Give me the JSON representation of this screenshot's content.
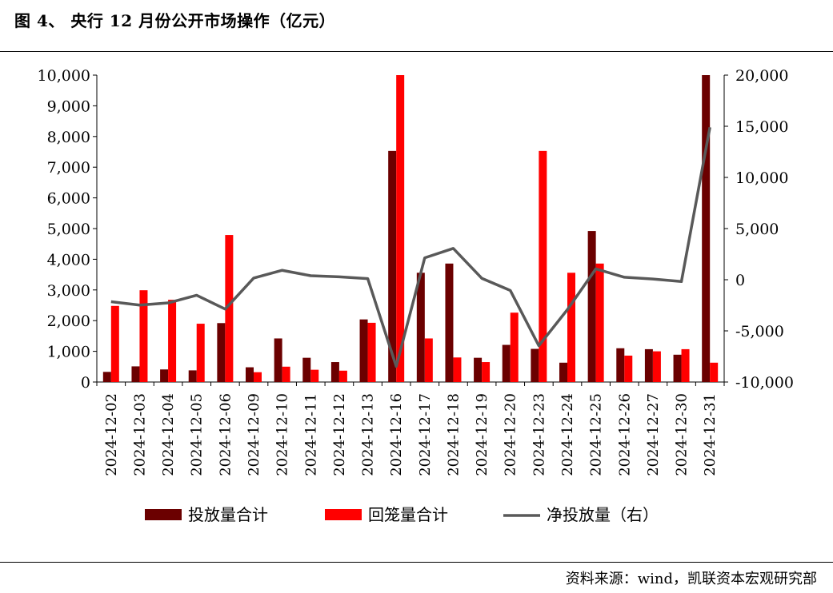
{
  "page": {
    "title": "图 4、 央行 12 月份公开市场操作（亿元）",
    "source": "资料来源：wind，凯联资本宏观研究部"
  },
  "colors": {
    "investment": "#6b0000",
    "redemption": "#ff0000",
    "net": "#595959",
    "axis": "#000000"
  },
  "chart_data": {
    "type": "bar",
    "title": "图 4、 央行 12 月份公开市场操作（亿元）",
    "categories": [
      "2024-12-02",
      "2024-12-03",
      "2024-12-04",
      "2024-12-05",
      "2024-12-06",
      "2024-12-09",
      "2024-12-10",
      "2024-12-11",
      "2024-12-12",
      "2024-12-13",
      "2024-12-16",
      "2024-12-17",
      "2024-12-18",
      "2024-12-19",
      "2024-12-20",
      "2024-12-23",
      "2024-12-24",
      "2024-12-25",
      "2024-12-26",
      "2024-12-27",
      "2024-12-30",
      "2024-12-31"
    ],
    "series": [
      {
        "name": "投放量合计",
        "type": "bar",
        "axis": "left",
        "values": [
          330,
          510,
          410,
          380,
          1920,
          480,
          1420,
          790,
          650,
          2040,
          7530,
          3560,
          3860,
          790,
          1210,
          1080,
          630,
          4920,
          1100,
          1070,
          890,
          10000
        ]
      },
      {
        "name": "回笼量合计",
        "type": "bar",
        "axis": "left",
        "values": [
          2480,
          2990,
          2680,
          1900,
          4790,
          320,
          500,
          400,
          370,
          1930,
          10000,
          1420,
          800,
          650,
          2260,
          7530,
          3560,
          3860,
          860,
          1000,
          1070,
          630
        ]
      },
      {
        "name": "净投放量（右）",
        "type": "line",
        "axis": "right",
        "values": [
          -2150,
          -2480,
          -2270,
          -1520,
          -2870,
          160,
          920,
          390,
          280,
          110,
          -8470,
          2140,
          3060,
          140,
          -1050,
          -6450,
          -2930,
          1060,
          240,
          70,
          -180,
          14900
        ]
      }
    ],
    "ylim_left": [
      0,
      10000
    ],
    "yticks_left": [
      "10,000",
      "9,000",
      "8,000",
      "7,000",
      "6,000",
      "5,000",
      "4,000",
      "3,000",
      "2,000",
      "1,000",
      "0"
    ],
    "ylim_right": [
      -10000,
      20000
    ],
    "yticks_right": [
      "20,000",
      "15,000",
      "10,000",
      "5,000",
      "0",
      "-5,000",
      "-10,000"
    ],
    "legend_position": "bottom",
    "grid": false
  }
}
